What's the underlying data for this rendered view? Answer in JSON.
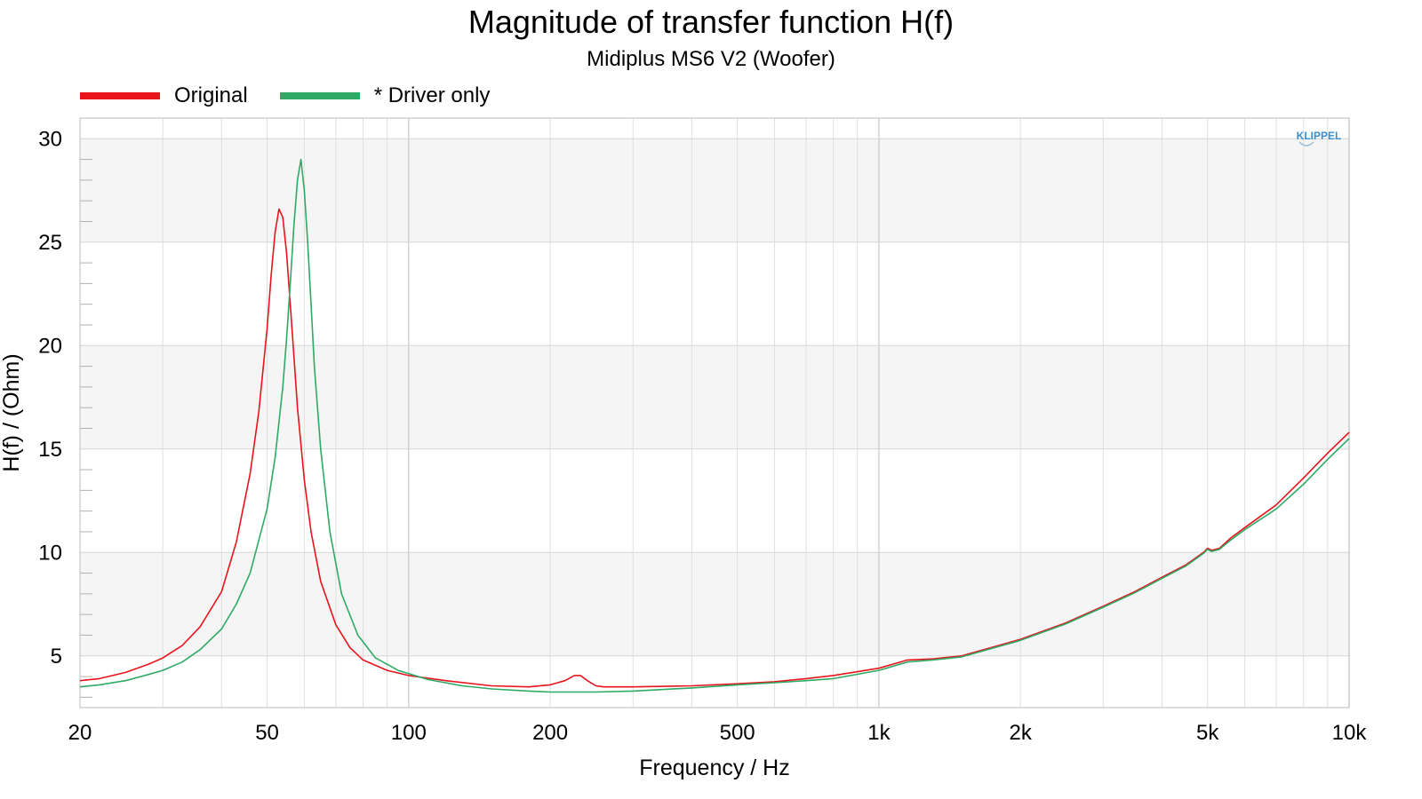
{
  "chart_data": {
    "type": "line",
    "title": "Magnitude of transfer function H(f)",
    "subtitle": "Midiplus MS6 V2 (Woofer)",
    "xlabel": "Frequency / Hz",
    "ylabel": "H(f) / (Ohm)",
    "xscale": "log",
    "xlim": [
      20,
      10000
    ],
    "ylim": [
      2.5,
      31
    ],
    "x_ticks": [
      {
        "value": 20,
        "label": "20"
      },
      {
        "value": 50,
        "label": "50"
      },
      {
        "value": 100,
        "label": "100"
      },
      {
        "value": 200,
        "label": "200"
      },
      {
        "value": 500,
        "label": "500"
      },
      {
        "value": 1000,
        "label": "1k"
      },
      {
        "value": 2000,
        "label": "2k"
      },
      {
        "value": 5000,
        "label": "5k"
      },
      {
        "value": 10000,
        "label": "10k"
      }
    ],
    "y_ticks": [
      5,
      10,
      15,
      20,
      25,
      30
    ],
    "grid": true,
    "legend_position": "top-left",
    "watermark": "KLIPPEL",
    "series": [
      {
        "name": "Original",
        "color": "#e8141c",
        "x": [
          20,
          22,
          25,
          28,
          30,
          33,
          36,
          40,
          43,
          46,
          48,
          50,
          51,
          52,
          53,
          54,
          55,
          56,
          57,
          58,
          60,
          62,
          65,
          70,
          75,
          80,
          90,
          100,
          120,
          150,
          180,
          200,
          215,
          225,
          232,
          240,
          250,
          260,
          280,
          300,
          400,
          500,
          600,
          700,
          800,
          1000,
          1150,
          1300,
          1500,
          2000,
          2500,
          3000,
          3500,
          4000,
          4500,
          4900,
          5000,
          5100,
          5300,
          5600,
          6000,
          7000,
          8000,
          9000,
          10000
        ],
        "y": [
          3.8,
          3.9,
          4.2,
          4.6,
          4.9,
          5.5,
          6.4,
          8.1,
          10.5,
          13.8,
          16.8,
          20.8,
          23.4,
          25.5,
          26.6,
          26.2,
          24.5,
          22.0,
          19.5,
          17.0,
          13.5,
          11.0,
          8.6,
          6.5,
          5.4,
          4.8,
          4.3,
          4.05,
          3.8,
          3.55,
          3.5,
          3.6,
          3.8,
          4.05,
          4.05,
          3.8,
          3.55,
          3.5,
          3.5,
          3.5,
          3.55,
          3.65,
          3.75,
          3.9,
          4.05,
          4.4,
          4.8,
          4.85,
          5.0,
          5.8,
          6.6,
          7.4,
          8.1,
          8.8,
          9.4,
          10.0,
          10.2,
          10.1,
          10.2,
          10.7,
          11.2,
          12.3,
          13.6,
          14.8,
          15.8
        ]
      },
      {
        "name": "* Driver only",
        "color": "#2eaa66",
        "x": [
          20,
          22,
          25,
          28,
          30,
          33,
          36,
          40,
          43,
          46,
          50,
          52,
          54,
          55,
          56,
          57,
          58,
          59,
          60,
          61,
          62,
          63,
          65,
          68,
          72,
          78,
          85,
          95,
          110,
          130,
          150,
          180,
          200,
          250,
          300,
          400,
          500,
          600,
          700,
          800,
          1000,
          1150,
          1300,
          1500,
          2000,
          2500,
          3000,
          3500,
          4000,
          4500,
          4900,
          5000,
          5100,
          5300,
          5600,
          6000,
          7000,
          8000,
          9000,
          10000
        ],
        "y": [
          3.5,
          3.6,
          3.8,
          4.1,
          4.3,
          4.7,
          5.3,
          6.3,
          7.5,
          9.0,
          12.1,
          14.6,
          18.0,
          20.3,
          23.0,
          25.8,
          28.0,
          29.0,
          27.5,
          25.0,
          22.0,
          19.0,
          15.0,
          11.0,
          8.0,
          6.0,
          4.9,
          4.3,
          3.85,
          3.55,
          3.4,
          3.3,
          3.25,
          3.25,
          3.3,
          3.45,
          3.6,
          3.7,
          3.8,
          3.9,
          4.3,
          4.7,
          4.8,
          4.95,
          5.75,
          6.55,
          7.35,
          8.05,
          8.75,
          9.35,
          9.95,
          10.15,
          10.05,
          10.15,
          10.6,
          11.1,
          12.1,
          13.3,
          14.5,
          15.5
        ]
      }
    ]
  }
}
